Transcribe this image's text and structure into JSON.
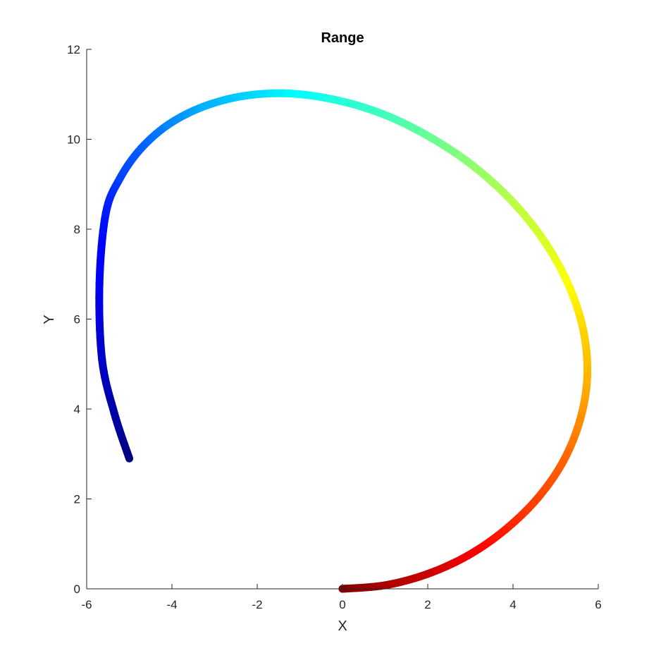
{
  "chart_data": {
    "type": "line",
    "title": "Range",
    "xlabel": "X",
    "ylabel": "Y",
    "xlim": [
      -6,
      6
    ],
    "ylim": [
      0,
      12
    ],
    "xticks": [
      -6,
      -4,
      -2,
      0,
      2,
      4,
      6
    ],
    "yticks": [
      0,
      2,
      4,
      6,
      8,
      10,
      12
    ],
    "xtick_labels": [
      "-6",
      "-4",
      "-2",
      "0",
      "2",
      "4",
      "6"
    ],
    "ytick_labels": [
      "0",
      "2",
      "4",
      "6",
      "8",
      "10",
      "12"
    ],
    "grid": false,
    "legend": "none",
    "colormap": "jet",
    "color_order": "start at (0, 0) dark red, end at (-5, 2.9) dark blue",
    "series": [
      {
        "x": [
          0,
          1.0,
          1.99,
          2.94,
          3.81,
          4.58,
          5.18,
          5.57,
          5.74,
          5.66,
          5.33,
          4.77,
          4.02,
          3.09,
          2.05,
          0.95,
          -0.18,
          -1.29,
          -2.34,
          -3.28,
          -4.08,
          -4.73,
          -5.22,
          -5.55,
          -5.7,
          -5.64,
          -5.35,
          -5.0
        ],
        "y": [
          0,
          0.08,
          0.33,
          0.74,
          1.31,
          2.02,
          2.84,
          3.75,
          4.7,
          5.7,
          6.7,
          7.68,
          8.58,
          9.39,
          10.05,
          10.56,
          10.88,
          11.02,
          10.96,
          10.72,
          10.33,
          9.79,
          9.13,
          8.36,
          6.8,
          5.1,
          3.9,
          2.9
        ],
        "color_values": [
          1.0,
          0.96,
          0.93,
          0.89,
          0.85,
          0.81,
          0.78,
          0.74,
          0.7,
          0.67,
          0.63,
          0.59,
          0.56,
          0.52,
          0.48,
          0.44,
          0.41,
          0.37,
          0.33,
          0.3,
          0.26,
          0.22,
          0.19,
          0.15,
          0.11,
          0.07,
          0.04,
          0.0
        ]
      }
    ]
  }
}
